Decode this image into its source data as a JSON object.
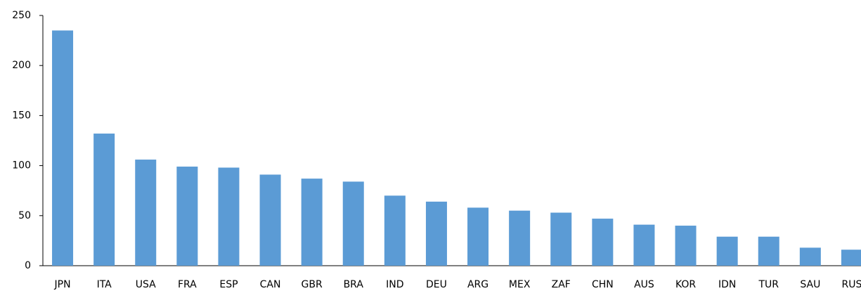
{
  "chart_data": {
    "type": "bar",
    "categories": [
      "JPN",
      "ITA",
      "USA",
      "FRA",
      "ESP",
      "CAN",
      "GBR",
      "BRA",
      "IND",
      "DEU",
      "ARG",
      "MEX",
      "ZAF",
      "CHN",
      "AUS",
      "KOR",
      "IDN",
      "TUR",
      "SAU",
      "RUS"
    ],
    "values": [
      235,
      132,
      106,
      99,
      98,
      91,
      87,
      84,
      70,
      64,
      58,
      55,
      53,
      47,
      41,
      40,
      29,
      29,
      18,
      16
    ],
    "color": "#5b9bd5",
    "ylim": [
      0,
      250
    ],
    "yticks": [
      0,
      50,
      100,
      150,
      200,
      250
    ],
    "grid": false
  }
}
